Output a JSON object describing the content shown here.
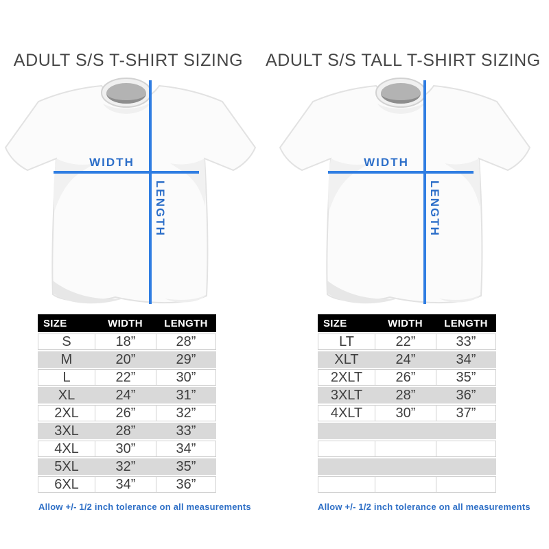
{
  "colors": {
    "accent_line": "#2f7de2",
    "accent_label": "#2d6fc9",
    "note_text": "#2e6fc6",
    "header_bg": "#000000",
    "row_alt_gray": "#d9d9d9",
    "cell_border": "#cfcfcf",
    "body_text": "#3f3f3f",
    "title_text": "#464646"
  },
  "chart_data": [
    {
      "type": "table",
      "title": "ADULT S/S T-SHIRT SIZING",
      "columns": [
        "SIZE",
        "WIDTH",
        "LENGTH"
      ],
      "rows": [
        [
          "S",
          "18”",
          "28”"
        ],
        [
          "M",
          "20”",
          "29”"
        ],
        [
          "L",
          "22”",
          "30”"
        ],
        [
          "XL",
          "24”",
          "31”"
        ],
        [
          "2XL",
          "26”",
          "32”"
        ],
        [
          "3XL",
          "28”",
          "33”"
        ],
        [
          "4XL",
          "30”",
          "34”"
        ],
        [
          "5XL",
          "32”",
          "35”"
        ],
        [
          "6XL",
          "34”",
          "36”"
        ]
      ],
      "annotations": {
        "width_label": "WIDTH",
        "length_label": "LENGTH"
      },
      "note": "Allow +/- 1/2 inch tolerance on all measurements"
    },
    {
      "type": "table",
      "title": "ADULT S/S TALL T-SHIRT SIZING",
      "columns": [
        "SIZE",
        "WIDTH",
        "LENGTH"
      ],
      "rows": [
        [
          "LT",
          "22”",
          "33”"
        ],
        [
          "XLT",
          "24”",
          "34”"
        ],
        [
          "2XLT",
          "26”",
          "35”"
        ],
        [
          "3XLT",
          "28”",
          "36”"
        ],
        [
          "4XLT",
          "30”",
          "37”"
        ],
        [
          "",
          "",
          ""
        ],
        [
          "",
          "",
          ""
        ],
        [
          "",
          "",
          ""
        ],
        [
          "",
          "",
          ""
        ]
      ],
      "annotations": {
        "width_label": "WIDTH",
        "length_label": "LENGTH"
      },
      "note": "Allow +/- 1/2 inch tolerance on all measurements"
    }
  ]
}
